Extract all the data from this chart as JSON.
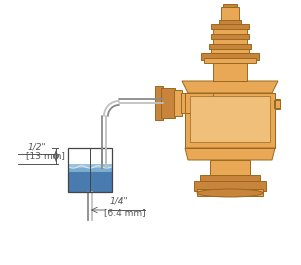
{
  "bg_color": "#ffffff",
  "vm": "#E8A855",
  "vd": "#C8843A",
  "vl": "#F0C07A",
  "vo": "#9B6820",
  "tube_dark": "#8A8A8A",
  "tube_light": "#C0C0C0",
  "water_deep": "#4A7BAF",
  "water_mid": "#7AADD0",
  "water_top": "#AACCE0",
  "dim_color": "#555555",
  "text_color": "#555555",
  "label_12": "1/2\"",
  "label_13mm": "[13 mm]",
  "label_14": "1/4\"",
  "label_64mm": "[6.4 mm]",
  "fig_width": 3.01,
  "fig_height": 2.65,
  "dpi": 100
}
